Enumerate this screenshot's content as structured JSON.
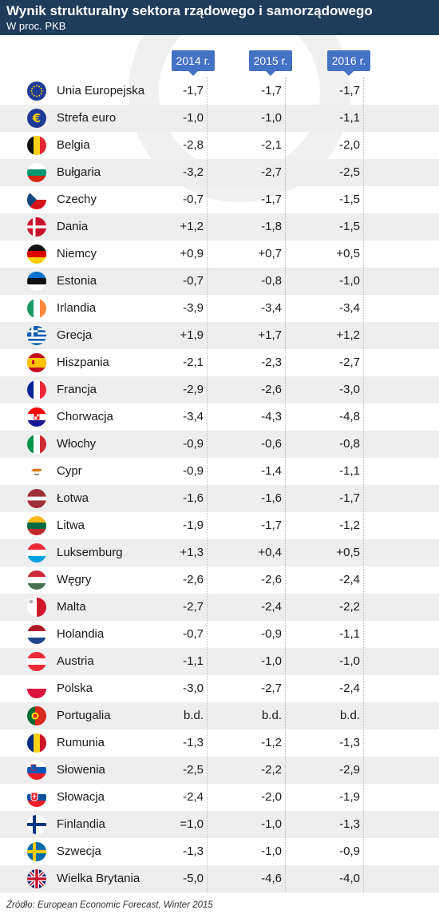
{
  "header": {
    "title": "Wynik strukturalny sektora rządowego i samorządowego",
    "subtitle": "W proc. PKB"
  },
  "columns": [
    "2014 r.",
    "2015 r.",
    "2016 r."
  ],
  "chart_data": {
    "type": "table",
    "title": "Wynik strukturalny sektora rządowego i samorządowego",
    "subtitle": "W proc. PKB",
    "columns": [
      "2014 r.",
      "2015 r.",
      "2016 r."
    ],
    "rows": [
      {
        "country": "Unia Europejska",
        "flag": "eu-flag-icon",
        "values": [
          "-1,7",
          "-1,7",
          "-1,7"
        ]
      },
      {
        "country": "Strefa euro",
        "flag": "euro-sign-icon",
        "values": [
          "-1,0",
          "-1,0",
          "-1,1"
        ]
      },
      {
        "country": "Belgia",
        "flag": "belgium-flag-icon",
        "values": [
          "-2,8",
          "-2,1",
          "-2,0"
        ]
      },
      {
        "country": "Bułgaria",
        "flag": "bulgaria-flag-icon",
        "values": [
          "-3,2",
          "-2,7",
          "-2,5"
        ]
      },
      {
        "country": "Czechy",
        "flag": "czechia-flag-icon",
        "values": [
          "-0,7",
          "-1,7",
          "-1,5"
        ]
      },
      {
        "country": "Dania",
        "flag": "denmark-flag-icon",
        "values": [
          "+1,2",
          "-1,8",
          "-1,5"
        ]
      },
      {
        "country": "Niemcy",
        "flag": "germany-flag-icon",
        "values": [
          "+0,9",
          "+0,7",
          "+0,5"
        ]
      },
      {
        "country": "Estonia",
        "flag": "estonia-flag-icon",
        "values": [
          "-0,7",
          "-0,8",
          "-1,0"
        ]
      },
      {
        "country": "Irlandia",
        "flag": "ireland-flag-icon",
        "values": [
          "-3,9",
          "-3,4",
          "-3,4"
        ]
      },
      {
        "country": "Grecja",
        "flag": "greece-flag-icon",
        "values": [
          "+1,9",
          "+1,7",
          "+1,2"
        ]
      },
      {
        "country": "Hiszpania",
        "flag": "spain-flag-icon",
        "values": [
          "-2,1",
          "-2,3",
          "-2,7"
        ]
      },
      {
        "country": "Francja",
        "flag": "france-flag-icon",
        "values": [
          "-2,9",
          "-2,6",
          "-3,0"
        ]
      },
      {
        "country": "Chorwacja",
        "flag": "croatia-flag-icon",
        "values": [
          "-3,4",
          "-4,3",
          "-4,8"
        ]
      },
      {
        "country": "Włochy",
        "flag": "italy-flag-icon",
        "values": [
          "-0,9",
          "-0,6",
          "-0,8"
        ]
      },
      {
        "country": "Cypr",
        "flag": "cyprus-flag-icon",
        "values": [
          "-0,9",
          "-1,4",
          "-1,1"
        ]
      },
      {
        "country": "Łotwa",
        "flag": "latvia-flag-icon",
        "values": [
          "-1,6",
          "-1,6",
          "-1,7"
        ]
      },
      {
        "country": "Litwa",
        "flag": "lithuania-flag-icon",
        "values": [
          "-1,9",
          "-1,7",
          "-1,2"
        ]
      },
      {
        "country": "Luksemburg",
        "flag": "luxembourg-flag-icon",
        "values": [
          "+1,3",
          "+0,4",
          "+0,5"
        ]
      },
      {
        "country": "Węgry",
        "flag": "hungary-flag-icon",
        "values": [
          "-2,6",
          "-2,6",
          "-2,4"
        ]
      },
      {
        "country": "Malta",
        "flag": "malta-flag-icon",
        "values": [
          "-2,7",
          "-2,4",
          "-2,2"
        ]
      },
      {
        "country": "Holandia",
        "flag": "netherlands-flag-icon",
        "values": [
          "-0,7",
          "-0,9",
          "-1,1"
        ]
      },
      {
        "country": "Austria",
        "flag": "austria-flag-icon",
        "values": [
          "-1,1",
          "-1,0",
          "-1,0"
        ]
      },
      {
        "country": "Polska",
        "flag": "poland-flag-icon",
        "values": [
          "-3,0",
          "-2,7",
          "-2,4"
        ]
      },
      {
        "country": "Portugalia",
        "flag": "portugal-flag-icon",
        "values": [
          "b.d.",
          "b.d.",
          "b.d."
        ]
      },
      {
        "country": "Rumunia",
        "flag": "romania-flag-icon",
        "values": [
          "-1,3",
          "-1,2",
          "-1,3"
        ]
      },
      {
        "country": "Słowenia",
        "flag": "slovenia-flag-icon",
        "values": [
          "-2,5",
          "-2,2",
          "-2,9"
        ]
      },
      {
        "country": "Słowacja",
        "flag": "slovakia-flag-icon",
        "values": [
          "-2,4",
          "-2,0",
          "-1,9"
        ]
      },
      {
        "country": "Finlandia",
        "flag": "finland-flag-icon",
        "values": [
          "=1,0",
          "-1,0",
          "-1,3"
        ]
      },
      {
        "country": "Szwecja",
        "flag": "sweden-flag-icon",
        "values": [
          "-1,3",
          "-1,0",
          "-0,9"
        ]
      },
      {
        "country": "Wielka Brytania",
        "flag": "uk-flag-icon",
        "values": [
          "-5,0",
          "-4,6",
          "-4,0"
        ]
      }
    ]
  },
  "colors": {
    "header_bg": "#1f3c5a",
    "column_header_bg": "#4472c4",
    "alt_row_bg": "#eeeeee"
  },
  "source": "Źródło: European Economic Forecast, Winter 2015"
}
